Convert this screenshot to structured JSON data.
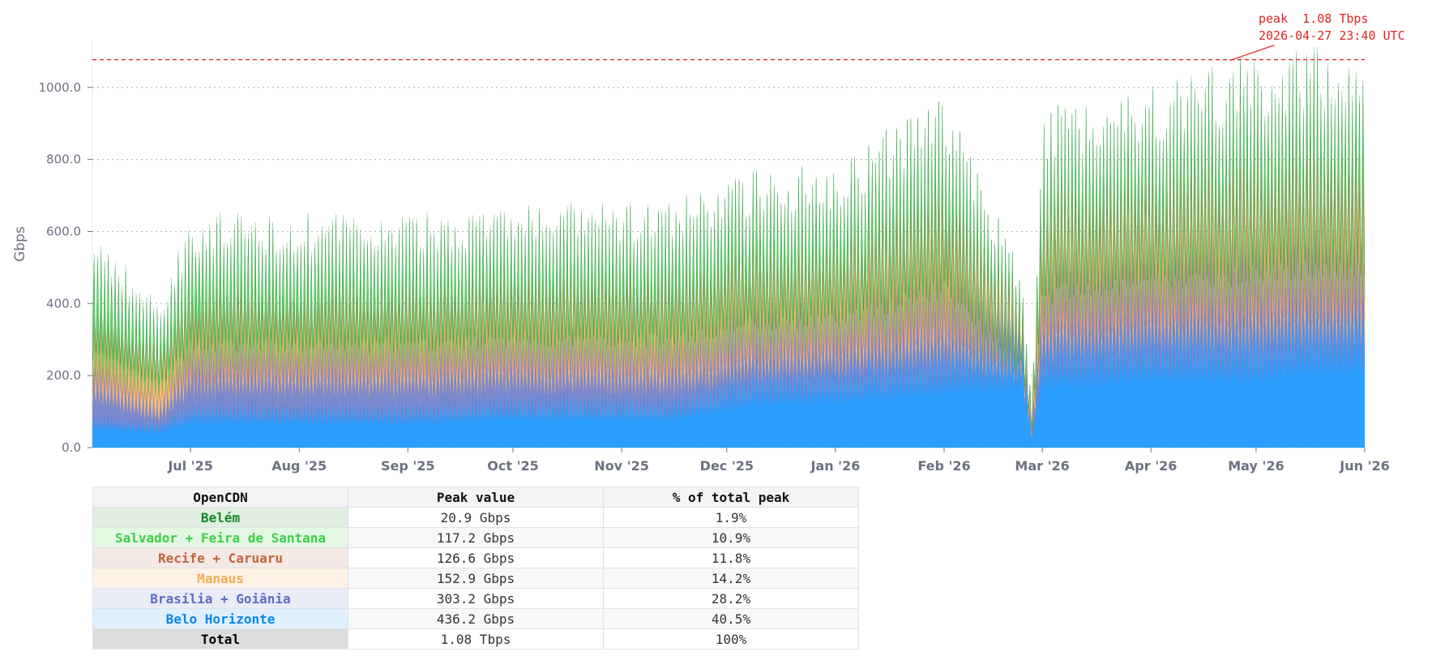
{
  "chart_data": {
    "type": "area",
    "stacked": true,
    "ylabel": "Gbps",
    "ylim": [
      0,
      1130
    ],
    "y_ticks": [
      "0.0",
      "200.0",
      "400.0",
      "600.0",
      "800.0",
      "1000.0"
    ],
    "y_tick_values": [
      0,
      200,
      400,
      600,
      800,
      1000
    ],
    "x_range": [
      "2025-06-03",
      "2026-06-01"
    ],
    "x_ticks": [
      {
        "label": "Jul '25",
        "date": "2025-07-01"
      },
      {
        "label": "Aug '25",
        "date": "2025-08-01"
      },
      {
        "label": "Sep '25",
        "date": "2025-09-01"
      },
      {
        "label": "Oct '25",
        "date": "2025-10-01"
      },
      {
        "label": "Nov '25",
        "date": "2025-11-01"
      },
      {
        "label": "Dec '25",
        "date": "2025-12-01"
      },
      {
        "label": "Jan '26",
        "date": "2026-01-01"
      },
      {
        "label": "Feb '26",
        "date": "2026-02-01"
      },
      {
        "label": "Mar '26",
        "date": "2026-03-01"
      },
      {
        "label": "Apr '26",
        "date": "2026-04-01"
      },
      {
        "label": "May '26",
        "date": "2026-05-01"
      },
      {
        "label": "Jun '26",
        "date": "2026-06-01"
      }
    ],
    "grid": "horizontal-dotted",
    "peak": {
      "value": 1077,
      "date": "2026-04-27",
      "line1": "peak  1.08 Tbps",
      "line2": "2026-04-27 23:40 UTC"
    },
    "series": [
      {
        "name": "Belo Horizonte",
        "color": "#2b9fff",
        "daily_peak": [
          {
            "date": "2025-06-03",
            "value": 95
          },
          {
            "date": "2025-06-22",
            "value": 75
          },
          {
            "date": "2025-07-01",
            "value": 130
          },
          {
            "date": "2025-09-01",
            "value": 125
          },
          {
            "date": "2025-10-01",
            "value": 150
          },
          {
            "date": "2025-11-15",
            "value": 145
          },
          {
            "date": "2025-12-10",
            "value": 230
          },
          {
            "date": "2026-01-01",
            "value": 240
          },
          {
            "date": "2026-02-01",
            "value": 290
          },
          {
            "date": "2026-02-23",
            "value": 320
          },
          {
            "date": "2026-02-26",
            "value": 30
          },
          {
            "date": "2026-03-01",
            "value": 320
          },
          {
            "date": "2026-04-01",
            "value": 350
          },
          {
            "date": "2026-05-01",
            "value": 360
          },
          {
            "date": "2026-06-01",
            "value": 420
          }
        ]
      },
      {
        "name": "Brasília + Goiânia",
        "color": "#5c6bc0",
        "daily_peak": [
          {
            "date": "2025-06-03",
            "value": 160
          },
          {
            "date": "2025-06-22",
            "value": 70
          },
          {
            "date": "2025-07-01",
            "value": 170
          },
          {
            "date": "2025-10-01",
            "value": 175
          },
          {
            "date": "2025-12-10",
            "value": 160
          },
          {
            "date": "2026-01-01",
            "value": 170
          },
          {
            "date": "2026-02-01",
            "value": 190
          },
          {
            "date": "2026-02-26",
            "value": 30
          },
          {
            "date": "2026-03-01",
            "value": 180
          },
          {
            "date": "2026-04-01",
            "value": 200
          },
          {
            "date": "2026-05-01",
            "value": 210
          },
          {
            "date": "2026-06-01",
            "value": 180
          }
        ]
      },
      {
        "name": "Manaus",
        "color": "#f6ad55",
        "daily_peak": [
          {
            "date": "2025-06-03",
            "value": 80
          },
          {
            "date": "2025-06-22",
            "value": 120
          },
          {
            "date": "2025-07-01",
            "value": 80
          },
          {
            "date": "2025-10-01",
            "value": 95
          },
          {
            "date": "2025-12-10",
            "value": 110
          },
          {
            "date": "2026-01-01",
            "value": 115
          },
          {
            "date": "2026-02-01",
            "value": 135
          },
          {
            "date": "2026-02-26",
            "value": 20
          },
          {
            "date": "2026-03-01",
            "value": 120
          },
          {
            "date": "2026-04-01",
            "value": 125
          },
          {
            "date": "2026-05-01",
            "value": 140
          },
          {
            "date": "2026-06-01",
            "value": 140
          }
        ]
      },
      {
        "name": "Recife + Caruaru",
        "color": "#c0653a",
        "daily_peak": [
          {
            "date": "2025-06-03",
            "value": 50
          },
          {
            "date": "2025-06-22",
            "value": 20
          },
          {
            "date": "2025-07-01",
            "value": 55
          },
          {
            "date": "2025-10-01",
            "value": 60
          },
          {
            "date": "2025-12-10",
            "value": 60
          },
          {
            "date": "2026-01-01",
            "value": 60
          },
          {
            "date": "2026-02-01",
            "value": 110
          },
          {
            "date": "2026-02-26",
            "value": 10
          },
          {
            "date": "2026-03-01",
            "value": 95
          },
          {
            "date": "2026-04-01",
            "value": 100
          },
          {
            "date": "2026-05-01",
            "value": 110
          },
          {
            "date": "2026-06-01",
            "value": 120
          }
        ]
      },
      {
        "name": "Salvador + Feira de Santana",
        "color": "#3ccf48",
        "daily_peak": [
          {
            "date": "2025-06-03",
            "value": 160
          },
          {
            "date": "2025-06-22",
            "value": 70
          },
          {
            "date": "2025-07-01",
            "value": 145
          },
          {
            "date": "2025-10-01",
            "value": 130
          },
          {
            "date": "2025-12-10",
            "value": 150
          },
          {
            "date": "2026-01-01",
            "value": 140
          },
          {
            "date": "2026-02-01",
            "value": 180
          },
          {
            "date": "2026-02-26",
            "value": 10
          },
          {
            "date": "2026-03-01",
            "value": 155
          },
          {
            "date": "2026-04-01",
            "value": 150
          },
          {
            "date": "2026-05-01",
            "value": 170
          },
          {
            "date": "2026-06-01",
            "value": 160
          }
        ]
      },
      {
        "name": "Belém",
        "color": "#138a2a",
        "daily_peak": [
          {
            "date": "2025-06-03",
            "value": 20
          },
          {
            "date": "2026-02-26",
            "value": 2
          },
          {
            "date": "2026-06-01",
            "value": 21
          }
        ]
      }
    ]
  },
  "table": {
    "headers": [
      "OpenCDN",
      "Peak value",
      "% of total peak"
    ],
    "rows": [
      {
        "name": "Belém",
        "peak": "20.9 Gbps",
        "pct": "1.9%",
        "color": "#138a2a",
        "bg": "#e0efe0"
      },
      {
        "name": "Salvador + Feira de Santana",
        "peak": "117.2 Gbps",
        "pct": "10.9%",
        "color": "#3ccf48",
        "bg": "#e3f7e3"
      },
      {
        "name": "Recife + Caruaru",
        "peak": "126.6 Gbps",
        "pct": "11.8%",
        "color": "#c0653a",
        "bg": "#f4e9e4"
      },
      {
        "name": "Manaus",
        "peak": "152.9 Gbps",
        "pct": "14.2%",
        "color": "#f6ad55",
        "bg": "#fdf1e6"
      },
      {
        "name": "Brasília + Goiânia",
        "peak": "303.2 Gbps",
        "pct": "28.2%",
        "color": "#5c6bc0",
        "bg": "#e9ebf6"
      },
      {
        "name": "Belo Horizonte",
        "peak": "436.2 Gbps",
        "pct": "40.5%",
        "color": "#0a85e8",
        "bg": "#e0effd"
      },
      {
        "name": "Total",
        "peak": "1.08 Tbps",
        "pct": "100%",
        "color": "#000000",
        "bg": "#dcdcdc"
      }
    ]
  }
}
